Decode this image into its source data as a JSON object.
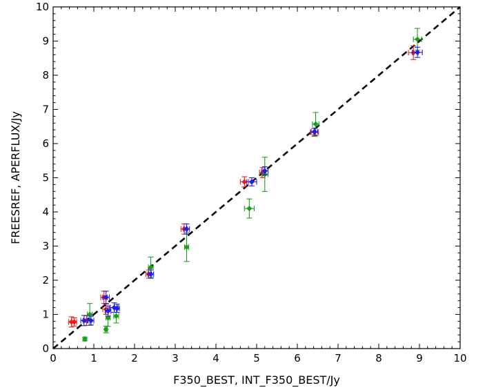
{
  "chart_data": {
    "type": "scatter",
    "xlabel": "F350_BEST, INT_F350_BEST/Jy",
    "ylabel": "FREESREF, APERFLUX/Jy",
    "xlim": [
      0,
      10
    ],
    "ylim": [
      0,
      10
    ],
    "x_ticks": [
      "0",
      "1",
      "2",
      "3",
      "4",
      "5",
      "6",
      "7",
      "8",
      "9",
      "10"
    ],
    "y_ticks": [
      "0",
      "1",
      "2",
      "3",
      "4",
      "5",
      "6",
      "7",
      "8",
      "9",
      "10"
    ],
    "grid": false,
    "legend": "none",
    "reference_line": {
      "style": "dashed",
      "color": "#000000",
      "x": [
        0,
        10
      ],
      "y": [
        0,
        10
      ]
    },
    "series": [
      {
        "color": "#ee1c1c",
        "points": [
          {
            "x": 0.45,
            "y": 0.78,
            "xerr": 0.07,
            "yerr": 0.15
          },
          {
            "x": 0.52,
            "y": 0.78,
            "xerr": 0.06,
            "yerr": 0.12
          },
          {
            "x": 0.82,
            "y": 0.82,
            "xerr": 0.08,
            "yerr": 0.14
          },
          {
            "x": 1.25,
            "y": 1.5,
            "xerr": 0.08,
            "yerr": 0.18
          },
          {
            "x": 1.3,
            "y": 1.15,
            "xerr": 0.08,
            "yerr": 0.15
          },
          {
            "x": 2.35,
            "y": 2.18,
            "xerr": 0.07,
            "yerr": 0.12
          },
          {
            "x": 3.22,
            "y": 3.5,
            "xerr": 0.08,
            "yerr": 0.15
          },
          {
            "x": 4.7,
            "y": 4.88,
            "xerr": 0.1,
            "yerr": 0.15
          },
          {
            "x": 5.15,
            "y": 5.15,
            "xerr": 0.08,
            "yerr": 0.15
          },
          {
            "x": 6.42,
            "y": 6.33,
            "xerr": 0.1,
            "yerr": 0.12
          },
          {
            "x": 8.85,
            "y": 8.66,
            "xerr": 0.12,
            "yerr": 0.2
          }
        ]
      },
      {
        "color": "#1a9e1a",
        "points": [
          {
            "x": 0.78,
            "y": 0.28,
            "xerr": 0.03,
            "yerr": 0.05
          },
          {
            "x": 0.9,
            "y": 1.0,
            "xerr": 0.06,
            "yerr": 0.32
          },
          {
            "x": 1.3,
            "y": 0.56,
            "xerr": 0.03,
            "yerr": 0.1
          },
          {
            "x": 1.35,
            "y": 0.9,
            "xerr": 0.05,
            "yerr": 0.25
          },
          {
            "x": 1.55,
            "y": 0.95,
            "xerr": 0.06,
            "yerr": 0.2
          },
          {
            "x": 2.4,
            "y": 2.38,
            "xerr": 0.06,
            "yerr": 0.3
          },
          {
            "x": 3.28,
            "y": 2.97,
            "xerr": 0.05,
            "yerr": 0.42
          },
          {
            "x": 4.82,
            "y": 4.1,
            "xerr": 0.12,
            "yerr": 0.28
          },
          {
            "x": 5.2,
            "y": 5.1,
            "xerr": 0.08,
            "yerr": 0.5
          },
          {
            "x": 6.45,
            "y": 6.57,
            "xerr": 0.08,
            "yerr": 0.34
          },
          {
            "x": 8.95,
            "y": 9.05,
            "xerr": 0.1,
            "yerr": 0.32
          }
        ]
      },
      {
        "color": "#1e1eee",
        "points": [
          {
            "x": 0.76,
            "y": 0.82,
            "xerr": 0.08,
            "yerr": 0.15
          },
          {
            "x": 0.93,
            "y": 0.82,
            "xerr": 0.07,
            "yerr": 0.13
          },
          {
            "x": 1.3,
            "y": 1.5,
            "xerr": 0.08,
            "yerr": 0.18
          },
          {
            "x": 1.35,
            "y": 1.1,
            "xerr": 0.07,
            "yerr": 0.15
          },
          {
            "x": 1.5,
            "y": 1.2,
            "xerr": 0.1,
            "yerr": 0.14
          },
          {
            "x": 1.57,
            "y": 1.18,
            "xerr": 0.06,
            "yerr": 0.12
          },
          {
            "x": 2.4,
            "y": 2.18,
            "xerr": 0.07,
            "yerr": 0.12
          },
          {
            "x": 3.28,
            "y": 3.5,
            "xerr": 0.07,
            "yerr": 0.15
          },
          {
            "x": 4.88,
            "y": 4.88,
            "xerr": 0.12,
            "yerr": 0.12
          },
          {
            "x": 5.2,
            "y": 5.2,
            "xerr": 0.08,
            "yerr": 0.12
          },
          {
            "x": 6.42,
            "y": 6.35,
            "xerr": 0.08,
            "yerr": 0.1
          },
          {
            "x": 8.95,
            "y": 8.67,
            "xerr": 0.12,
            "yerr": 0.15
          }
        ]
      }
    ]
  }
}
